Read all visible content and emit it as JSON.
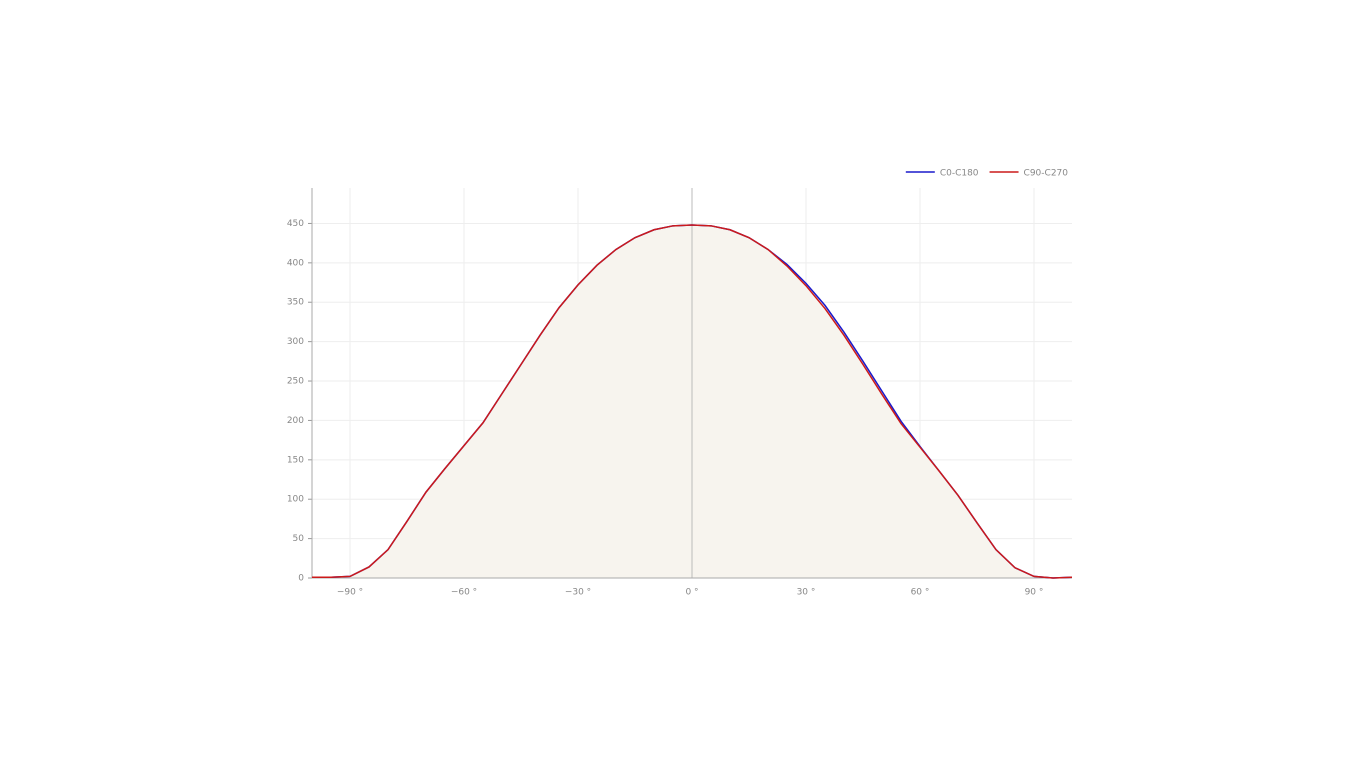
{
  "chart_data": {
    "type": "line",
    "x": [
      -100,
      -95,
      -90,
      -85,
      -80,
      -75,
      -70,
      -65,
      -60,
      -55,
      -50,
      -45,
      -40,
      -35,
      -30,
      -25,
      -20,
      -15,
      -10,
      -5,
      0,
      5,
      10,
      15,
      20,
      25,
      30,
      35,
      40,
      45,
      50,
      55,
      60,
      65,
      70,
      75,
      80,
      85,
      90,
      95,
      100
    ],
    "series": [
      {
        "name": "C0-C180",
        "color": "#1a1acc",
        "values": [
          1,
          1,
          2,
          14,
          36,
          72,
          109,
          139,
          168,
          197,
          234,
          271,
          308,
          343,
          372,
          397,
          417,
          432,
          442,
          447,
          448,
          447,
          442,
          432,
          417,
          398,
          374,
          346,
          312,
          275,
          237,
          199,
          167,
          136,
          105,
          70,
          36,
          13,
          2,
          0,
          1
        ]
      },
      {
        "name": "C90-C270",
        "color": "#cc1a1a",
        "values": [
          1,
          1,
          2,
          14,
          36,
          72,
          109,
          139,
          168,
          197,
          234,
          271,
          308,
          343,
          372,
          397,
          417,
          432,
          442,
          447,
          448,
          447,
          442,
          432,
          417,
          396,
          371,
          342,
          308,
          271,
          233,
          196,
          166,
          136,
          105,
          70,
          36,
          13,
          2,
          0,
          1
        ]
      }
    ],
    "xlim": [
      -100,
      100
    ],
    "xticks": [
      {
        "value": -90,
        "label": "−90 °"
      },
      {
        "value": -60,
        "label": "−60 °"
      },
      {
        "value": -30,
        "label": "−30 °"
      },
      {
        "value": 0,
        "label": "0 °"
      },
      {
        "value": 30,
        "label": "30 °"
      },
      {
        "value": 60,
        "label": "60 °"
      },
      {
        "value": 90,
        "label": "90 °"
      }
    ],
    "ylim": [
      0,
      495
    ],
    "yticks": [
      0,
      50,
      100,
      150,
      200,
      250,
      300,
      350,
      400,
      450
    ],
    "grid": true,
    "legend": "top-right",
    "area_color": "#f7f4ee"
  }
}
